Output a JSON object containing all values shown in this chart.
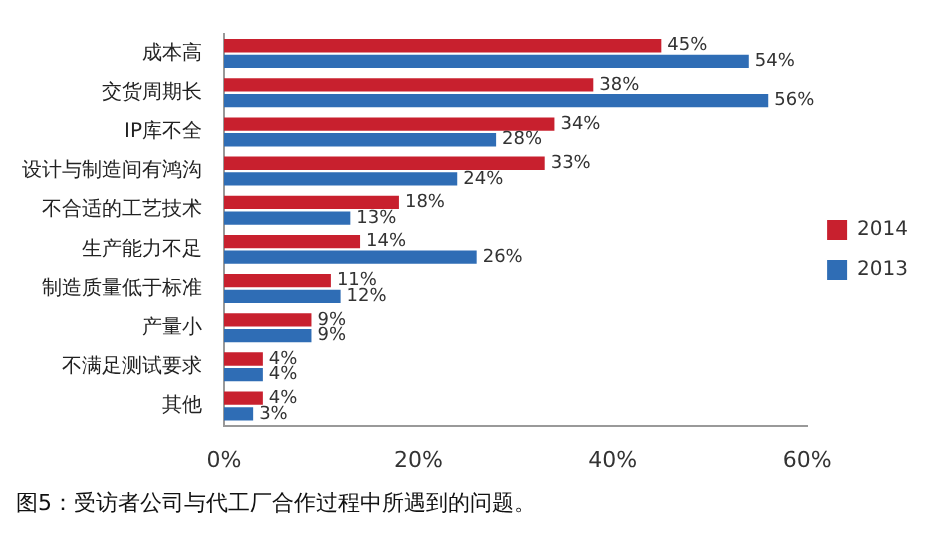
{
  "chart_data": {
    "type": "bar",
    "orientation": "horizontal",
    "categories": [
      "成本高",
      "交货周期长",
      "IP库不全",
      "设计与制造间有鸿沟",
      "不合适的工艺技术",
      "生产能力不足",
      "制造质量低于标准",
      "产量小",
      "不满足测试要求",
      "其他"
    ],
    "series": [
      {
        "name": "2014",
        "color": "#c8202e",
        "values": [
          45,
          38,
          34,
          33,
          18,
          14,
          11,
          9,
          4,
          4
        ],
        "value_labels": [
          "45%",
          "38%",
          "34%",
          "33%",
          "18%",
          "14%",
          "11%",
          "9%",
          "4%",
          "4%"
        ]
      },
      {
        "name": "2013",
        "color": "#2f6db5",
        "values": [
          54,
          56,
          28,
          24,
          13,
          26,
          12,
          9,
          4,
          3
        ],
        "value_labels": [
          "54%",
          "56%",
          "28%",
          "24%",
          "13%",
          "26%",
          "12%",
          "9%",
          "4%",
          "3%"
        ]
      }
    ],
    "xlim": [
      0,
      60
    ],
    "xticks": [
      {
        "value": 0,
        "label": "0%"
      },
      {
        "value": 20,
        "label": "20%"
      },
      {
        "value": 40,
        "label": "40%"
      },
      {
        "value": 60,
        "label": "60%"
      }
    ],
    "grid": false,
    "legend": "right",
    "annotations": [
      "图5：受访者公司与代工厂合作过程中所遇到的问题。"
    ]
  }
}
